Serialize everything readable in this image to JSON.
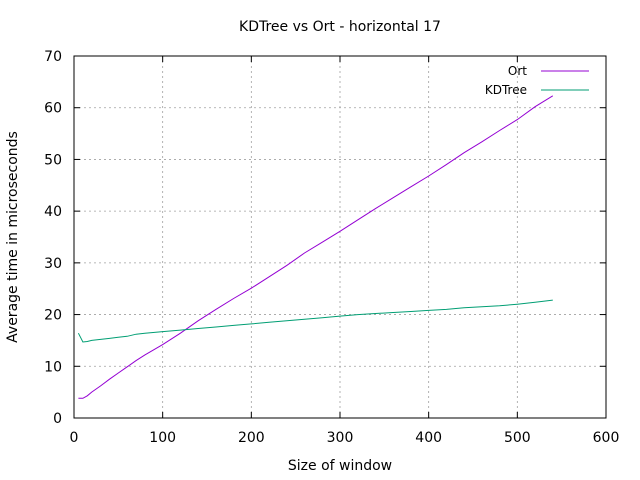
{
  "chart_data": {
    "type": "line",
    "title": "KDTree vs Ort - horizontal 17",
    "xlabel": "Size of window",
    "ylabel": "Average time in microseconds",
    "xlim": [
      0,
      600
    ],
    "ylim": [
      0,
      70
    ],
    "xticks": [
      0,
      100,
      200,
      300,
      400,
      500,
      600
    ],
    "yticks": [
      0,
      10,
      20,
      30,
      40,
      50,
      60,
      70
    ],
    "grid": true,
    "legend_position": "top-right",
    "series": [
      {
        "name": "Ort",
        "color": "#9400d3",
        "x": [
          5,
          10,
          15,
          20,
          30,
          40,
          50,
          60,
          70,
          80,
          100,
          120,
          140,
          160,
          180,
          200,
          220,
          240,
          260,
          280,
          300,
          320,
          340,
          360,
          380,
          400,
          420,
          440,
          460,
          480,
          500,
          520,
          540
        ],
        "y": [
          3.8,
          3.8,
          4.3,
          5.0,
          6.2,
          7.5,
          8.7,
          9.9,
          11.1,
          12.2,
          14.2,
          16.4,
          18.8,
          21.0,
          23.1,
          25.1,
          27.3,
          29.5,
          31.9,
          34.0,
          36.1,
          38.3,
          40.5,
          42.6,
          44.7,
          46.8,
          49.0,
          51.3,
          53.4,
          55.6,
          57.7,
          60.2,
          62.3
        ]
      },
      {
        "name": "KDTree",
        "color": "#009e73",
        "x": [
          5,
          10,
          15,
          20,
          30,
          40,
          50,
          60,
          70,
          80,
          100,
          120,
          140,
          160,
          180,
          200,
          220,
          240,
          260,
          280,
          300,
          320,
          340,
          360,
          380,
          400,
          420,
          440,
          460,
          480,
          500,
          520,
          540
        ],
        "y": [
          16.4,
          14.7,
          14.8,
          15.0,
          15.2,
          15.4,
          15.6,
          15.8,
          16.2,
          16.4,
          16.7,
          17.0,
          17.3,
          17.6,
          17.9,
          18.2,
          18.5,
          18.8,
          19.1,
          19.4,
          19.7,
          20.0,
          20.2,
          20.4,
          20.6,
          20.8,
          21.0,
          21.3,
          21.5,
          21.7,
          22.0,
          22.4,
          22.8
        ]
      }
    ]
  }
}
